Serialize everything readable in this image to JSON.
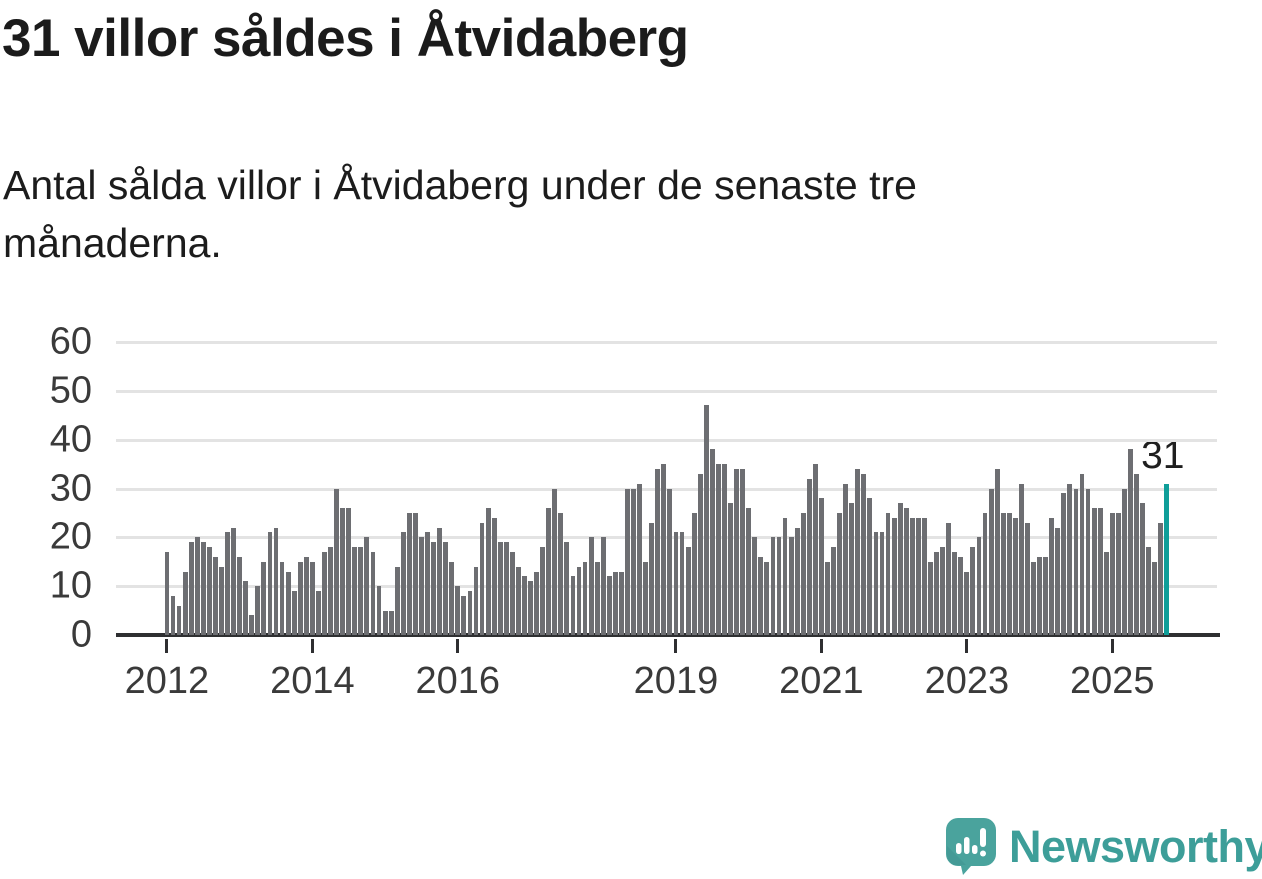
{
  "header": {
    "title": "31 villor såldes i Åtvidaberg",
    "subtitle": "Antal sålda villor i Åtvidaberg under de senaste tre månaderna."
  },
  "chart_data": {
    "type": "bar",
    "title": "31 villor såldes i Åtvidaberg",
    "subtitle": "Antal sålda villor i Åtvidaberg under de senaste tre månaderna.",
    "frequency": "monthly",
    "x_start": "2012-01",
    "x_end": "2025-10",
    "values": [
      17,
      8,
      6,
      13,
      19,
      20,
      19,
      18,
      16,
      14,
      21,
      22,
      16,
      11,
      4,
      10,
      15,
      21,
      22,
      15,
      13,
      9,
      15,
      16,
      15,
      9,
      17,
      18,
      30,
      26,
      26,
      18,
      18,
      20,
      17,
      10,
      5,
      5,
      14,
      21,
      25,
      25,
      20,
      21,
      19,
      22,
      19,
      15,
      10,
      8,
      9,
      14,
      23,
      26,
      24,
      19,
      19,
      17,
      14,
      12,
      11,
      13,
      18,
      26,
      30,
      25,
      19,
      12,
      14,
      15,
      20,
      15,
      20,
      12,
      13,
      13,
      30,
      30,
      31,
      15,
      23,
      34,
      35,
      30,
      21,
      21,
      18,
      25,
      33,
      47,
      38,
      35,
      35,
      27,
      34,
      34,
      26,
      20,
      16,
      15,
      20,
      20,
      24,
      20,
      22,
      25,
      32,
      35,
      28,
      15,
      18,
      25,
      31,
      27,
      34,
      33,
      28,
      21,
      21,
      25,
      24,
      27,
      26,
      24,
      24,
      24,
      15,
      17,
      18,
      23,
      17,
      16,
      13,
      18,
      20,
      25,
      30,
      34,
      25,
      25,
      24,
      31,
      23,
      15,
      16,
      16,
      24,
      22,
      29,
      31,
      30,
      33,
      30,
      26,
      26,
      17,
      25,
      25,
      30,
      38,
      33,
      27,
      18,
      15,
      23,
      31
    ],
    "highlight_index": 165,
    "annotation": {
      "text": "31"
    },
    "ylim": [
      0,
      60
    ],
    "y_ticks": [
      0,
      10,
      20,
      30,
      40,
      50,
      60
    ],
    "x_tick_years": [
      "2012",
      "2014",
      "2016",
      "2019",
      "2021",
      "2023",
      "2025"
    ],
    "grid": "horizontal only",
    "legend": "none",
    "colors": {
      "bar": "#6d6e72",
      "highlight": "#0f9e99",
      "grid": "#e3e3e3",
      "axis": "#2e2f31",
      "tick_label": "#3a3a3a",
      "annotation": "#1f1f1f"
    }
  },
  "footer": {
    "brand": "Newsworthy",
    "brand_color": "#3d9e99",
    "logo_color": "#4aa39d",
    "logo_shade_color": "#3f948f"
  }
}
